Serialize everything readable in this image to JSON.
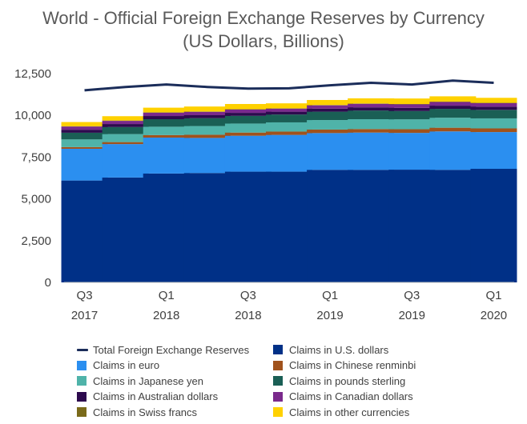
{
  "title_line1": "World - Official Foreign Exchange Reserves by Currency",
  "title_line2": "(US Dollars, Billions)",
  "colors": {
    "total_line": "#1b2d5a",
    "usd": "#003087",
    "eur": "#2b8ff0",
    "cny": "#a0521c",
    "jpy": "#4fb3a9",
    "gbp": "#1a5f55",
    "aud": "#2d0a4e",
    "cad": "#7a2a8c",
    "chf": "#7a6a1a",
    "other": "#ffd100"
  },
  "chart_data": {
    "type": "bar",
    "stacked": true,
    "categories": [
      "Q3 2017",
      "Q4 2017",
      "Q1 2018",
      "Q2 2018",
      "Q3 2018",
      "Q4 2018",
      "Q1 2019",
      "Q2 2019",
      "Q3 2019",
      "Q4 2019",
      "Q1 2020"
    ],
    "tick_labels": [
      {
        "line1": "Q3",
        "line2": "2017"
      },
      {
        "line1": "",
        "line2": ""
      },
      {
        "line1": "Q1",
        "line2": "2018"
      },
      {
        "line1": "",
        "line2": ""
      },
      {
        "line1": "Q3",
        "line2": "2018"
      },
      {
        "line1": "",
        "line2": ""
      },
      {
        "line1": "Q1",
        "line2": "2019"
      },
      {
        "line1": "",
        "line2": ""
      },
      {
        "line1": "Q3",
        "line2": "2019"
      },
      {
        "line1": "",
        "line2": ""
      },
      {
        "line1": "Q1",
        "line2": "2020"
      }
    ],
    "series": [
      {
        "name": "Claims in U.S. dollars",
        "key": "usd",
        "values": [
          6100,
          6280,
          6520,
          6550,
          6630,
          6630,
          6740,
          6740,
          6750,
          6740,
          6800
        ]
      },
      {
        "name": "Claims in euro",
        "key": "eur",
        "values": [
          1900,
          2000,
          2150,
          2100,
          2150,
          2200,
          2200,
          2230,
          2200,
          2300,
          2200
        ]
      },
      {
        "name": "Claims in Chinese renminbi",
        "key": "cny",
        "values": [
          100,
          120,
          150,
          190,
          190,
          200,
          210,
          210,
          220,
          220,
          220
        ]
      },
      {
        "name": "Claims in Japanese yen",
        "key": "jpy",
        "values": [
          460,
          480,
          500,
          520,
          540,
          550,
          570,
          590,
          590,
          600,
          600
        ]
      },
      {
        "name": "Claims in pounds sterling",
        "key": "gbp",
        "values": [
          400,
          420,
          450,
          470,
          460,
          470,
          500,
          520,
          500,
          530,
          510
        ]
      },
      {
        "name": "Claims in Australian dollars",
        "key": "aud",
        "values": [
          180,
          180,
          190,
          180,
          180,
          170,
          180,
          190,
          190,
          190,
          190
        ]
      },
      {
        "name": "Claims in Canadian dollars",
        "key": "cad",
        "values": [
          190,
          190,
          200,
          200,
          200,
          180,
          200,
          210,
          210,
          220,
          210
        ]
      },
      {
        "name": "Claims in Swiss francs",
        "key": "chf",
        "values": [
          20,
          20,
          20,
          20,
          20,
          20,
          20,
          20,
          20,
          20,
          20
        ]
      },
      {
        "name": "Claims in other currencies",
        "key": "other",
        "values": [
          250,
          260,
          280,
          300,
          310,
          300,
          300,
          310,
          330,
          320,
          300
        ]
      }
    ],
    "line_series": {
      "name": "Total Foreign Exchange Reserves",
      "key": "total_line",
      "values": [
        11500,
        11700,
        11850,
        11700,
        11600,
        11620,
        11800,
        11950,
        11850,
        12080,
        11950
      ]
    },
    "y_axis": {
      "min": 0,
      "max": 12500,
      "ticks": [
        0,
        2500,
        5000,
        7500,
        10000,
        12500
      ],
      "tick_labels": [
        "0",
        "2,500",
        "5,000",
        "7,500",
        "10,000",
        "12,500"
      ]
    },
    "xlabel": "",
    "ylabel": "",
    "grid": false,
    "legend_position": "bottom"
  },
  "legend": [
    {
      "label": "Total Foreign Exchange Reserves",
      "key": "total_line",
      "kind": "line"
    },
    {
      "label": "Claims in U.S. dollars",
      "key": "usd",
      "kind": "box"
    },
    {
      "label": "Claims in euro",
      "key": "eur",
      "kind": "box"
    },
    {
      "label": "Claims in Chinese renminbi",
      "key": "cny",
      "kind": "box"
    },
    {
      "label": "Claims in Japanese yen",
      "key": "jpy",
      "kind": "box"
    },
    {
      "label": "Claims in pounds sterling",
      "key": "gbp",
      "kind": "box"
    },
    {
      "label": "Claims in Australian dollars",
      "key": "aud",
      "kind": "box"
    },
    {
      "label": "Claims in Canadian dollars",
      "key": "cad",
      "kind": "box"
    },
    {
      "label": "Claims in Swiss francs",
      "key": "chf",
      "kind": "box"
    },
    {
      "label": "Claims in other currencies",
      "key": "other",
      "kind": "box"
    }
  ]
}
